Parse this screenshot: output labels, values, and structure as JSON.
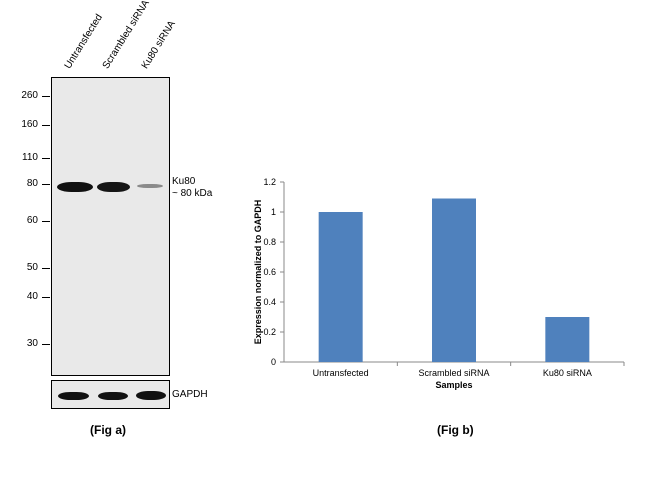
{
  "fig_a": {
    "lanes": [
      "Untransfected",
      "Scrambled siRNA",
      "Ku80 siRNA"
    ],
    "mw_markers": [
      "260",
      "160",
      "110",
      "80",
      "60",
      "50",
      "40",
      "30"
    ],
    "target_label_line1": "Ku80",
    "target_label_line2": "~ 80 kDa",
    "control_label": "GAPDH",
    "caption": "(Fig a)"
  },
  "fig_b": {
    "caption": "(Fig b)"
  },
  "chart_data": {
    "type": "bar",
    "categories": [
      "Untransfected",
      "Scrambled siRNA",
      "Ku80 siRNA"
    ],
    "values": [
      1.0,
      1.09,
      0.3
    ],
    "xlabel": "Samples",
    "ylabel": "Expression normalized to GAPDH",
    "ylim": [
      0,
      1.2
    ],
    "yticks": [
      "0",
      "0.2",
      "0.4",
      "0.6",
      "0.8",
      "1",
      "1.2"
    ],
    "bar_color": "#4f81bd",
    "grid": false,
    "legend": "none"
  }
}
